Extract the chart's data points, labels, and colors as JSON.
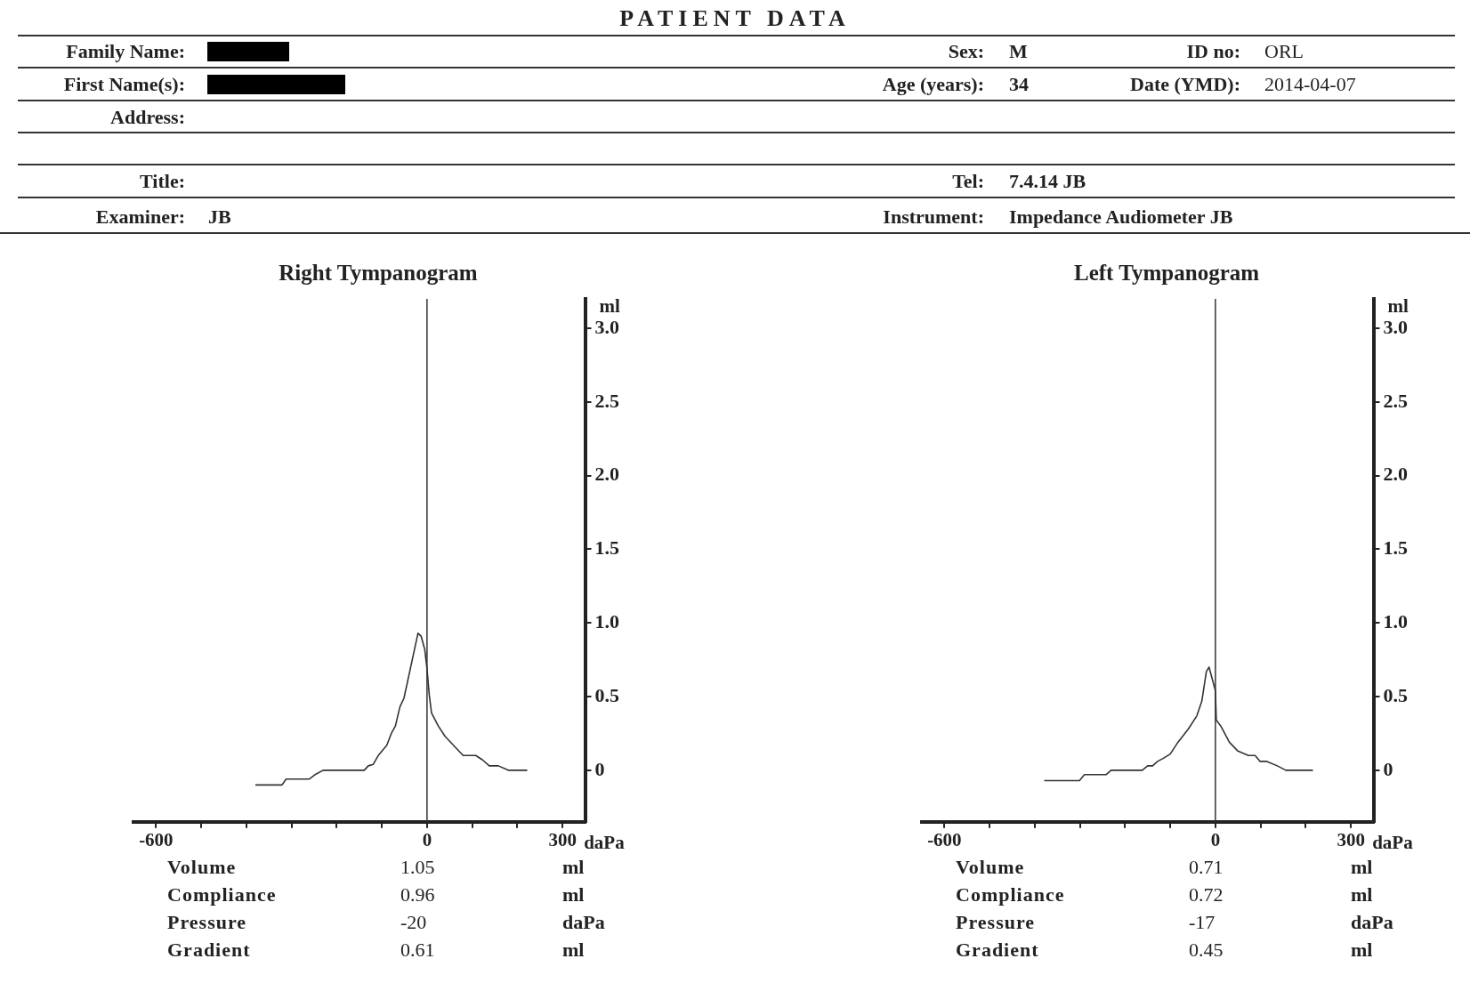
{
  "chart_data": [
    {
      "type": "other",
      "title": "PATIENT DATA",
      "annotations": [
        "Family Name:",
        "First Name(s):",
        "Address:",
        "Title:",
        "Examiner:",
        "JB",
        "Sex:",
        "M",
        "Age (years):",
        "34",
        "Tel:",
        "7.4.14 JB",
        "Instrument:",
        "Impedance Audiometer JB",
        "ID no:",
        "ORL",
        "Date (YMD):",
        "2014-04-07"
      ]
    },
    {
      "type": "line",
      "title": "Right Tympanogram",
      "xlabel": "daPa",
      "ylabel": "ml",
      "color": "#333333",
      "marker": "none",
      "x": [
        -380,
        -321,
        -312,
        -261,
        -248,
        -230,
        -139,
        -130,
        -119,
        -108,
        -89,
        -79,
        -70,
        -60,
        -51,
        -39,
        -20,
        -13,
        -5,
        0,
        5,
        10,
        25,
        40,
        80,
        108,
        123,
        138,
        158,
        180,
        222
      ],
      "values": [
        -0.1,
        -0.1,
        -0.06,
        -0.06,
        -0.03,
        0,
        0,
        0.03,
        0.04,
        0.1,
        0.17,
        0.25,
        0.3,
        0.43,
        0.49,
        0.66,
        0.93,
        0.91,
        0.82,
        0.69,
        0.51,
        0.39,
        0.3,
        0.23,
        0.1,
        0.1,
        0.07,
        0.03,
        0.03,
        0,
        0
      ],
      "xlim": [
        -650,
        350
      ],
      "xticks": [
        -600,
        {
          "value": -500,
          "label": null
        },
        {
          "value": -400,
          "label": null
        },
        {
          "value": -300,
          "label": null
        },
        {
          "value": -200,
          "label": null
        },
        {
          "value": -100,
          "label": null
        },
        0,
        {
          "value": 100,
          "label": null
        },
        {
          "value": 200,
          "label": null
        },
        300
      ],
      "ylim": [
        -0.35,
        3.2
      ],
      "yticks": [
        0,
        0.5,
        {
          "value": 1,
          "label": "1.0"
        },
        1.5,
        {
          "value": 2,
          "label": "2.0"
        },
        2.5,
        {
          "value": 3,
          "label": "3.0"
        }
      ],
      "ref_lines": [
        {
          "axis": "x",
          "value": 0,
          "color": "#333333"
        }
      ],
      "annotations": [
        "Volume",
        "1.05",
        "ml",
        "Compliance",
        "0.96",
        "ml",
        "Pressure",
        "-20",
        "daPa",
        "Gradient",
        "0.61",
        "ml"
      ]
    },
    {
      "type": "line",
      "title": "Left Tympanogram",
      "xlabel": "daPa",
      "ylabel": "ml",
      "color": "#333333",
      "marker": "none",
      "x": [
        -379,
        -301,
        -290,
        -242,
        -231,
        -162,
        -150,
        -139,
        -128,
        -116,
        -100,
        -83,
        -60,
        -41,
        -30,
        -20,
        -14,
        -7,
        0,
        2,
        12,
        31,
        50,
        73,
        88,
        99,
        114,
        137,
        156,
        216
      ],
      "values": [
        -0.07,
        -0.07,
        -0.03,
        -0.03,
        0,
        0,
        0.03,
        0.03,
        0.06,
        0.08,
        0.11,
        0.19,
        0.28,
        0.37,
        0.47,
        0.67,
        0.7,
        0.62,
        0.54,
        0.34,
        0.3,
        0.19,
        0.13,
        0.1,
        0.1,
        0.06,
        0.06,
        0.03,
        0,
        0
      ],
      "xlim": [
        -650,
        350
      ],
      "xticks": [
        -600,
        {
          "value": -500,
          "label": null
        },
        {
          "value": -400,
          "label": null
        },
        {
          "value": -300,
          "label": null
        },
        {
          "value": -200,
          "label": null
        },
        {
          "value": -100,
          "label": null
        },
        0,
        {
          "value": 100,
          "label": null
        },
        {
          "value": 200,
          "label": null
        },
        300
      ],
      "ylim": [
        -0.35,
        3.2
      ],
      "yticks": [
        0,
        0.5,
        {
          "value": 1,
          "label": "1.0"
        },
        1.5,
        {
          "value": 2,
          "label": "2.0"
        },
        2.5,
        {
          "value": 3,
          "label": "3.0"
        }
      ],
      "ref_lines": [
        {
          "axis": "x",
          "value": 0,
          "color": "#333333"
        }
      ],
      "annotations": [
        "Volume",
        "0.71",
        "ml",
        "Compliance",
        "0.72",
        "ml",
        "Pressure",
        "-17",
        "daPa",
        "Gradient",
        "0.45",
        "ml"
      ]
    }
  ]
}
